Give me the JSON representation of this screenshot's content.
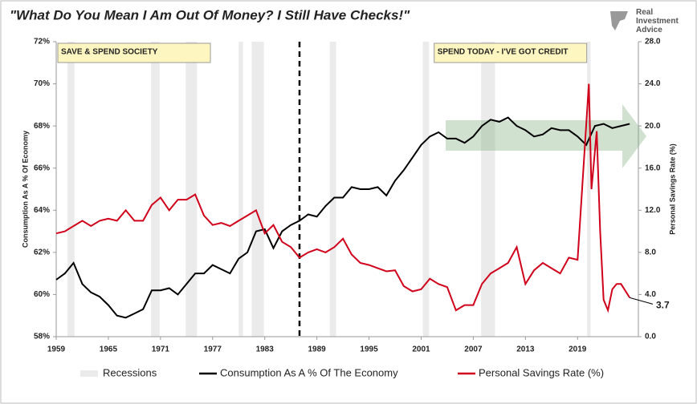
{
  "chart_data": {
    "type": "line",
    "title": "\"What Do You Mean I Am Out Of Money?  I Still Have Checks!\"",
    "logo": "Real Investment Advice",
    "ylabel": "Consumption As A % Of Economy",
    "y2label": "Personal Savings Rate (%)",
    "xlim": [
      1959,
      2026
    ],
    "xticks": [
      1959,
      1965,
      1971,
      1977,
      1983,
      1989,
      1995,
      2001,
      2007,
      2013,
      2019
    ],
    "ylim": [
      58,
      72
    ],
    "yticks": [
      {
        "value": 58,
        "label": "58%"
      },
      {
        "value": 60,
        "label": "60%"
      },
      {
        "value": 62,
        "label": "62%"
      },
      {
        "value": 64,
        "label": "64%"
      },
      {
        "value": 66,
        "label": "66%"
      },
      {
        "value": 68,
        "label": "68%"
      },
      {
        "value": 70,
        "label": "70%"
      },
      {
        "value": 72,
        "label": "72%"
      }
    ],
    "y2lim": [
      0,
      28
    ],
    "y2ticks": [
      {
        "value": 0,
        "label": "0.0"
      },
      {
        "value": 4,
        "label": "4.0"
      },
      {
        "value": 8,
        "label": "8.0"
      },
      {
        "value": 12,
        "label": "12.0"
      },
      {
        "value": 16,
        "label": "16.0"
      },
      {
        "value": 20,
        "label": "20.0"
      },
      {
        "value": 24,
        "label": "24.0"
      },
      {
        "value": 28,
        "label": "28.0"
      }
    ],
    "recessions": {
      "name": "Recessions",
      "color": "#ebebeb",
      "periods": [
        [
          1960.3,
          1961.1
        ],
        [
          1969.9,
          1970.9
        ],
        [
          1973.9,
          1975.2
        ],
        [
          1980.0,
          1980.5
        ],
        [
          1981.5,
          1982.9
        ],
        [
          1990.5,
          1991.2
        ],
        [
          2001.2,
          2001.9
        ],
        [
          2007.9,
          2009.5
        ],
        [
          2020.1,
          2020.5
        ]
      ]
    },
    "divider_x": 1987,
    "annotations": [
      {
        "text": "SAVE & SPEND SOCIETY"
      },
      {
        "text": "SPEND TODAY - I'VE GOT CREDIT"
      }
    ],
    "end_label": {
      "text": "3.7",
      "color": "#d0021b"
    },
    "series": [
      {
        "name": "Consumption As A % Of The Economy",
        "color": "#000000",
        "x": [
          1959,
          1960,
          1961,
          1962,
          1963,
          1964,
          1965,
          1966,
          1967,
          1968,
          1969,
          1970,
          1971,
          1972,
          1973,
          1974,
          1975,
          1976,
          1977,
          1978,
          1979,
          1980,
          1981,
          1982,
          1983,
          1984,
          1985,
          1986,
          1987,
          1988,
          1989,
          1990,
          1991,
          1992,
          1993,
          1994,
          1995,
          1996,
          1997,
          1998,
          1999,
          2000,
          2001,
          2002,
          2003,
          2004,
          2005,
          2006,
          2007,
          2008,
          2009,
          2010,
          2011,
          2012,
          2013,
          2014,
          2015,
          2016,
          2017,
          2018,
          2019,
          2020,
          2021,
          2022,
          2023,
          2024,
          2025
        ],
        "values": [
          60.7,
          61.0,
          61.5,
          60.5,
          60.1,
          59.9,
          59.5,
          59.0,
          58.9,
          59.1,
          59.3,
          60.2,
          60.2,
          60.3,
          60.0,
          60.5,
          61.0,
          61.0,
          61.4,
          61.2,
          61.0,
          61.7,
          62.0,
          63.0,
          63.1,
          62.2,
          63.0,
          63.3,
          63.5,
          63.8,
          63.7,
          64.2,
          64.6,
          64.6,
          65.1,
          65.0,
          65.0,
          65.1,
          64.7,
          65.4,
          65.9,
          66.5,
          67.1,
          67.5,
          67.7,
          67.4,
          67.4,
          67.2,
          67.5,
          68.0,
          68.3,
          68.2,
          68.4,
          68.0,
          67.8,
          67.5,
          67.6,
          67.9,
          67.8,
          67.8,
          67.5,
          67.1,
          68.0,
          68.1,
          67.9,
          68.0,
          68.1
        ]
      },
      {
        "name": "Personal Savings Rate (%)",
        "color": "#d0021b",
        "axis": "y2",
        "x": [
          1959,
          1960,
          1961,
          1962,
          1963,
          1964,
          1965,
          1966,
          1967,
          1968,
          1969,
          1970,
          1971,
          1972,
          1973,
          1974,
          1975,
          1976,
          1977,
          1978,
          1979,
          1980,
          1981,
          1982,
          1983,
          1984,
          1985,
          1986,
          1987,
          1988,
          1989,
          1990,
          1991,
          1992,
          1993,
          1994,
          1995,
          1996,
          1997,
          1998,
          1999,
          2000,
          2001,
          2002,
          2003,
          2004,
          2005,
          2006,
          2007,
          2008,
          2009,
          2010,
          2011,
          2012,
          2013,
          2014,
          2015,
          2016,
          2017,
          2018,
          2019,
          2020.3,
          2020.6,
          2021.2,
          2021.6,
          2022,
          2022.5,
          2023,
          2023.5,
          2024,
          2025
        ],
        "values": [
          9.8,
          10.0,
          10.5,
          11.0,
          10.5,
          11.0,
          11.2,
          11.0,
          12.0,
          11.0,
          11.0,
          12.5,
          13.2,
          12.0,
          13.0,
          13.0,
          13.5,
          11.5,
          10.6,
          10.8,
          10.5,
          11.0,
          11.5,
          12.0,
          9.8,
          10.6,
          9.0,
          8.5,
          7.5,
          8.0,
          8.3,
          8.0,
          8.5,
          9.3,
          7.8,
          7.0,
          6.8,
          6.5,
          6.2,
          6.3,
          4.8,
          4.3,
          4.5,
          5.5,
          5.0,
          4.7,
          2.5,
          3.0,
          3.0,
          5.0,
          6.0,
          6.5,
          7.0,
          8.5,
          5.0,
          6.3,
          7.0,
          6.5,
          6.0,
          7.5,
          7.3,
          24.0,
          14.0,
          19.5,
          10.0,
          3.5,
          2.5,
          4.5,
          5.0,
          5.0,
          3.7
        ]
      }
    ]
  }
}
